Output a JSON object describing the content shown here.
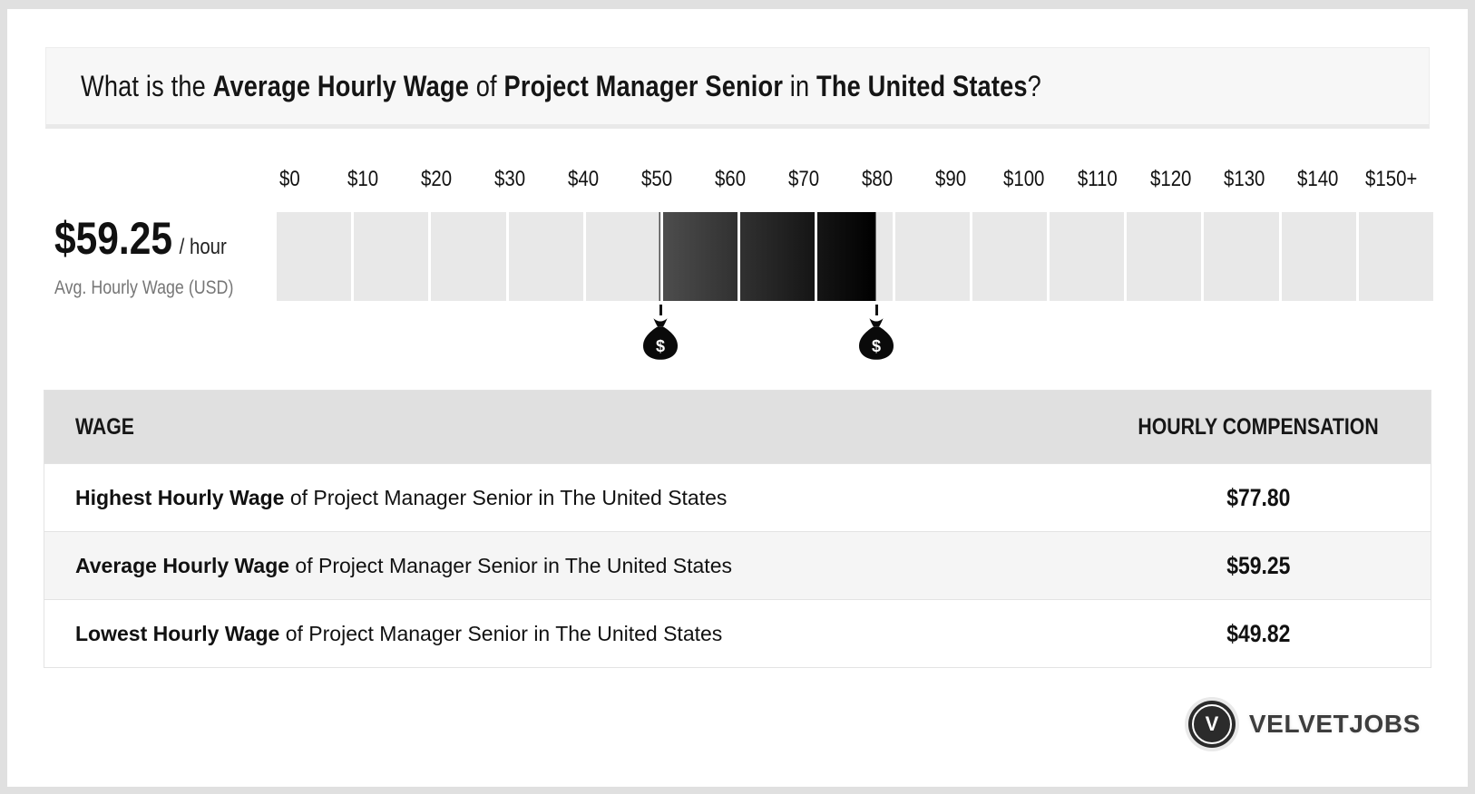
{
  "colors": {
    "page_bg": "#e0e0e0",
    "card_bg": "#ffffff",
    "banner_bg": "#f7f7f7",
    "table_header_bg": "#e0e0e0",
    "row_alt_bg": "#f5f5f5",
    "logo_circle": "#2b2b2b",
    "brand_text": "#3d3d3d"
  },
  "header": {
    "title_parts": [
      {
        "text": "What is the ",
        "bold": false
      },
      {
        "text": "Average Hourly Wage",
        "bold": true
      },
      {
        "text": " of ",
        "bold": false
      },
      {
        "text": "Project Manager Senior",
        "bold": true
      },
      {
        "text": " in ",
        "bold": false
      },
      {
        "text": "The United States",
        "bold": true
      },
      {
        "text": "?",
        "bold": false
      }
    ]
  },
  "stat": {
    "value": "$59.25",
    "unit": "/ hour",
    "caption": "Avg. Hourly Wage (USD)"
  },
  "chart_data": {
    "type": "bar",
    "subtype": "highlighted-range-wage-scale",
    "title": "What is the Average Hourly Wage of Project Manager Senior in The United States?",
    "x_ticks": [
      "$0",
      "$10",
      "$20",
      "$30",
      "$40",
      "$50",
      "$60",
      "$70",
      "$80",
      "$90",
      "$100",
      "$110",
      "$120",
      "$130",
      "$140",
      "$150+"
    ],
    "x_min": 0,
    "x_max": 150,
    "cells": 15,
    "cell_value_size": 10,
    "average": 59.25,
    "highlight": {
      "low": 49.82,
      "high": 77.8,
      "label_low": "$49.82",
      "label_high": "$77.80"
    },
    "markers": [
      {
        "name": "lowest-wage-money-bag",
        "value": 49.82
      },
      {
        "name": "highest-wage-money-bag",
        "value": 77.8
      }
    ],
    "colors": {
      "cell": "#e8e8e8",
      "gradient_start": "#4d4d4d",
      "gradient_end": "#000000",
      "marker": "#0a0a0a"
    },
    "grid": false,
    "legend": false
  },
  "table": {
    "headers": [
      "WAGE",
      "HOURLY COMPENSATION"
    ],
    "rows": [
      {
        "bold": "Highest Hourly Wage",
        "rest": " of Project Manager Senior in The United States",
        "value": "$77.80"
      },
      {
        "bold": "Average Hourly Wage",
        "rest": " of Project Manager Senior in The United States",
        "value": "$59.25"
      },
      {
        "bold": "Lowest Hourly Wage",
        "rest": " of Project Manager Senior in The United States",
        "value": "$49.82"
      }
    ]
  },
  "footer": {
    "logo_letter": "V",
    "brand": "VELVETJOBS"
  }
}
